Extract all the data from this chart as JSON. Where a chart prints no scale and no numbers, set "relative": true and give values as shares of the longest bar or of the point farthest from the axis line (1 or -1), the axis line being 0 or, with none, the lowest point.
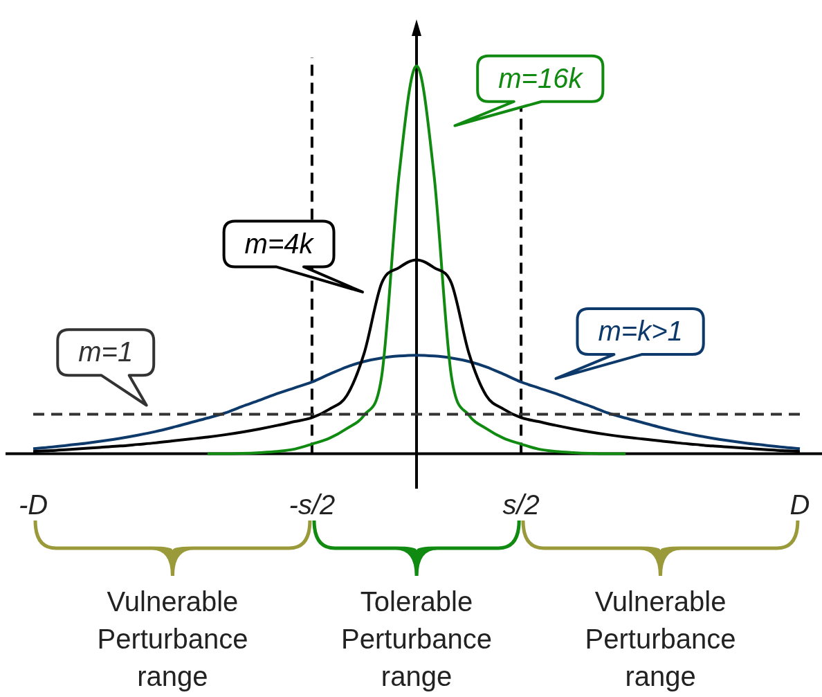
{
  "chart_data": {
    "type": "line",
    "relative": true,
    "grid": false,
    "legend": false,
    "marker": "none",
    "categories": [
      "-D",
      null,
      null,
      null,
      null,
      null,
      null,
      null,
      null,
      null,
      null,
      null,
      null,
      null,
      null,
      null,
      "-s/2",
      null,
      null,
      null,
      null,
      null,
      null,
      null,
      null,
      null,
      null,
      null,
      "s/2",
      null,
      null,
      null,
      null,
      null,
      null,
      null,
      null,
      null,
      null,
      null,
      null,
      null,
      null,
      null,
      "D"
    ],
    "series": [
      {
        "name": "m=1",
        "color": "#333333",
        "line_style": "dashed",
        "values": [
          0.102,
          0.102,
          0.102,
          0.102,
          0.102,
          0.102,
          0.102,
          0.102,
          0.102,
          0.102,
          0.102,
          0.102,
          0.102,
          0.102,
          0.102,
          0.102,
          0.102,
          0.102,
          0.102,
          0.102,
          0.102,
          0.102,
          0.102,
          0.102,
          0.102,
          0.102,
          0.102,
          0.102,
          0.102,
          0.102,
          0.102,
          0.102,
          0.102,
          0.102,
          0.102,
          0.102,
          0.102,
          0.102,
          0.102,
          0.102,
          0.102,
          0.102,
          0.102,
          0.102,
          0.102
        ]
      },
      {
        "name": "m=4k",
        "color": "#000000",
        "line_style": "solid",
        "values": [
          0.006,
          0.008,
          0.011,
          0.014,
          0.017,
          0.02,
          0.024,
          0.028,
          0.033,
          0.038,
          0.043,
          0.049,
          0.056,
          0.064,
          0.073,
          0.083,
          0.093,
          0.115,
          0.15,
          0.26,
          0.44,
          0.48,
          0.5,
          0.48,
          0.44,
          0.26,
          0.15,
          0.115,
          0.093,
          0.083,
          0.073,
          0.064,
          0.056,
          0.049,
          0.043,
          0.038,
          0.033,
          0.028,
          0.024,
          0.02,
          0.017,
          0.014,
          0.011,
          0.008,
          0.006
        ]
      },
      {
        "name": "m=16k",
        "color": "#108a10",
        "line_style": "solid",
        "values": [
          null,
          null,
          null,
          null,
          null,
          null,
          null,
          null,
          null,
          null,
          0,
          0,
          0.001,
          0.003,
          0.006,
          0.012,
          0.025,
          0.04,
          0.065,
          0.1,
          0.2,
          0.72,
          1,
          0.72,
          0.2,
          0.1,
          0.065,
          0.04,
          0.025,
          0.012,
          0.006,
          0.003,
          0.001,
          0,
          0,
          null,
          null,
          null,
          null,
          null,
          null,
          null,
          null,
          null,
          null
        ]
      },
      {
        "name": "m=k>1",
        "color": "#0e3a6b",
        "line_style": "solid",
        "values": [
          0.013,
          0.017,
          0.022,
          0.027,
          0.033,
          0.04,
          0.048,
          0.057,
          0.068,
          0.08,
          0.092,
          0.105,
          0.122,
          0.138,
          0.155,
          0.17,
          0.185,
          0.205,
          0.224,
          0.238,
          0.247,
          0.252,
          0.254,
          0.252,
          0.247,
          0.238,
          0.224,
          0.205,
          0.185,
          0.17,
          0.155,
          0.138,
          0.122,
          0.105,
          0.092,
          0.08,
          0.068,
          0.057,
          0.048,
          0.04,
          0.033,
          0.027,
          0.022,
          0.017,
          0.013
        ]
      }
    ],
    "ref_lines": [
      {
        "axis": "x",
        "value": "-s/2",
        "color": "#000000",
        "line_style": "dashed"
      },
      {
        "axis": "x",
        "value": "s/2",
        "color": "#000000",
        "line_style": "dashed"
      }
    ],
    "annotations": [
      "Vulnerable Perturbance range",
      "Tolerable Perturbance range",
      "Vulnerable Perturbance range"
    ]
  }
}
